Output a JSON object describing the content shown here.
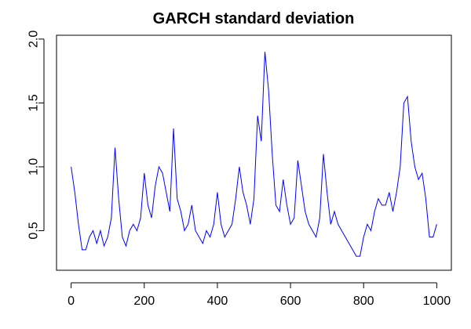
{
  "chart_data": {
    "type": "line",
    "title": "GARCH standard deviation",
    "x": [
      0,
      10,
      20,
      30,
      40,
      50,
      60,
      70,
      80,
      90,
      100,
      110,
      120,
      130,
      140,
      150,
      160,
      170,
      180,
      190,
      200,
      210,
      220,
      230,
      240,
      250,
      260,
      270,
      280,
      290,
      300,
      310,
      320,
      330,
      340,
      350,
      360,
      370,
      380,
      390,
      400,
      410,
      420,
      430,
      440,
      450,
      460,
      470,
      480,
      490,
      500,
      510,
      520,
      530,
      540,
      550,
      560,
      570,
      580,
      590,
      600,
      610,
      620,
      630,
      640,
      650,
      660,
      670,
      680,
      690,
      700,
      710,
      720,
      730,
      740,
      750,
      760,
      770,
      780,
      790,
      800,
      810,
      820,
      830,
      840,
      850,
      860,
      870,
      880,
      890,
      900,
      910,
      920,
      930,
      940,
      950,
      960,
      970,
      980,
      990,
      1000
    ],
    "values": [
      1.0,
      0.8,
      0.55,
      0.35,
      0.35,
      0.45,
      0.5,
      0.4,
      0.5,
      0.38,
      0.45,
      0.6,
      1.15,
      0.75,
      0.45,
      0.38,
      0.5,
      0.55,
      0.5,
      0.6,
      0.95,
      0.7,
      0.6,
      0.85,
      1.0,
      0.95,
      0.8,
      0.65,
      1.3,
      0.75,
      0.65,
      0.5,
      0.55,
      0.7,
      0.5,
      0.45,
      0.4,
      0.5,
      0.45,
      0.55,
      0.8,
      0.55,
      0.45,
      0.5,
      0.55,
      0.75,
      1.0,
      0.8,
      0.7,
      0.55,
      0.75,
      1.4,
      1.2,
      1.9,
      1.6,
      1.1,
      0.7,
      0.65,
      0.9,
      0.7,
      0.55,
      0.6,
      1.05,
      0.85,
      0.65,
      0.55,
      0.5,
      0.45,
      0.6,
      1.1,
      0.8,
      0.55,
      0.65,
      0.55,
      0.5,
      0.45,
      0.4,
      0.35,
      0.3,
      0.3,
      0.45,
      0.55,
      0.5,
      0.65,
      0.75,
      0.7,
      0.7,
      0.8,
      0.65,
      0.8,
      1.0,
      1.5,
      1.55,
      1.2,
      1.0,
      0.9,
      0.95,
      0.75,
      0.45,
      0.45,
      0.55
    ],
    "color": "#0000ff",
    "xlim": [
      -40,
      1040
    ],
    "xticks": [
      0,
      200,
      400,
      600,
      800,
      1000
    ],
    "ylim": [
      0.19,
      2.03
    ],
    "yticks": [
      0.5,
      {
        "value": 1,
        "label": "1.0"
      },
      1.5,
      {
        "value": 2,
        "label": "2.0"
      }
    ],
    "grid": false
  }
}
